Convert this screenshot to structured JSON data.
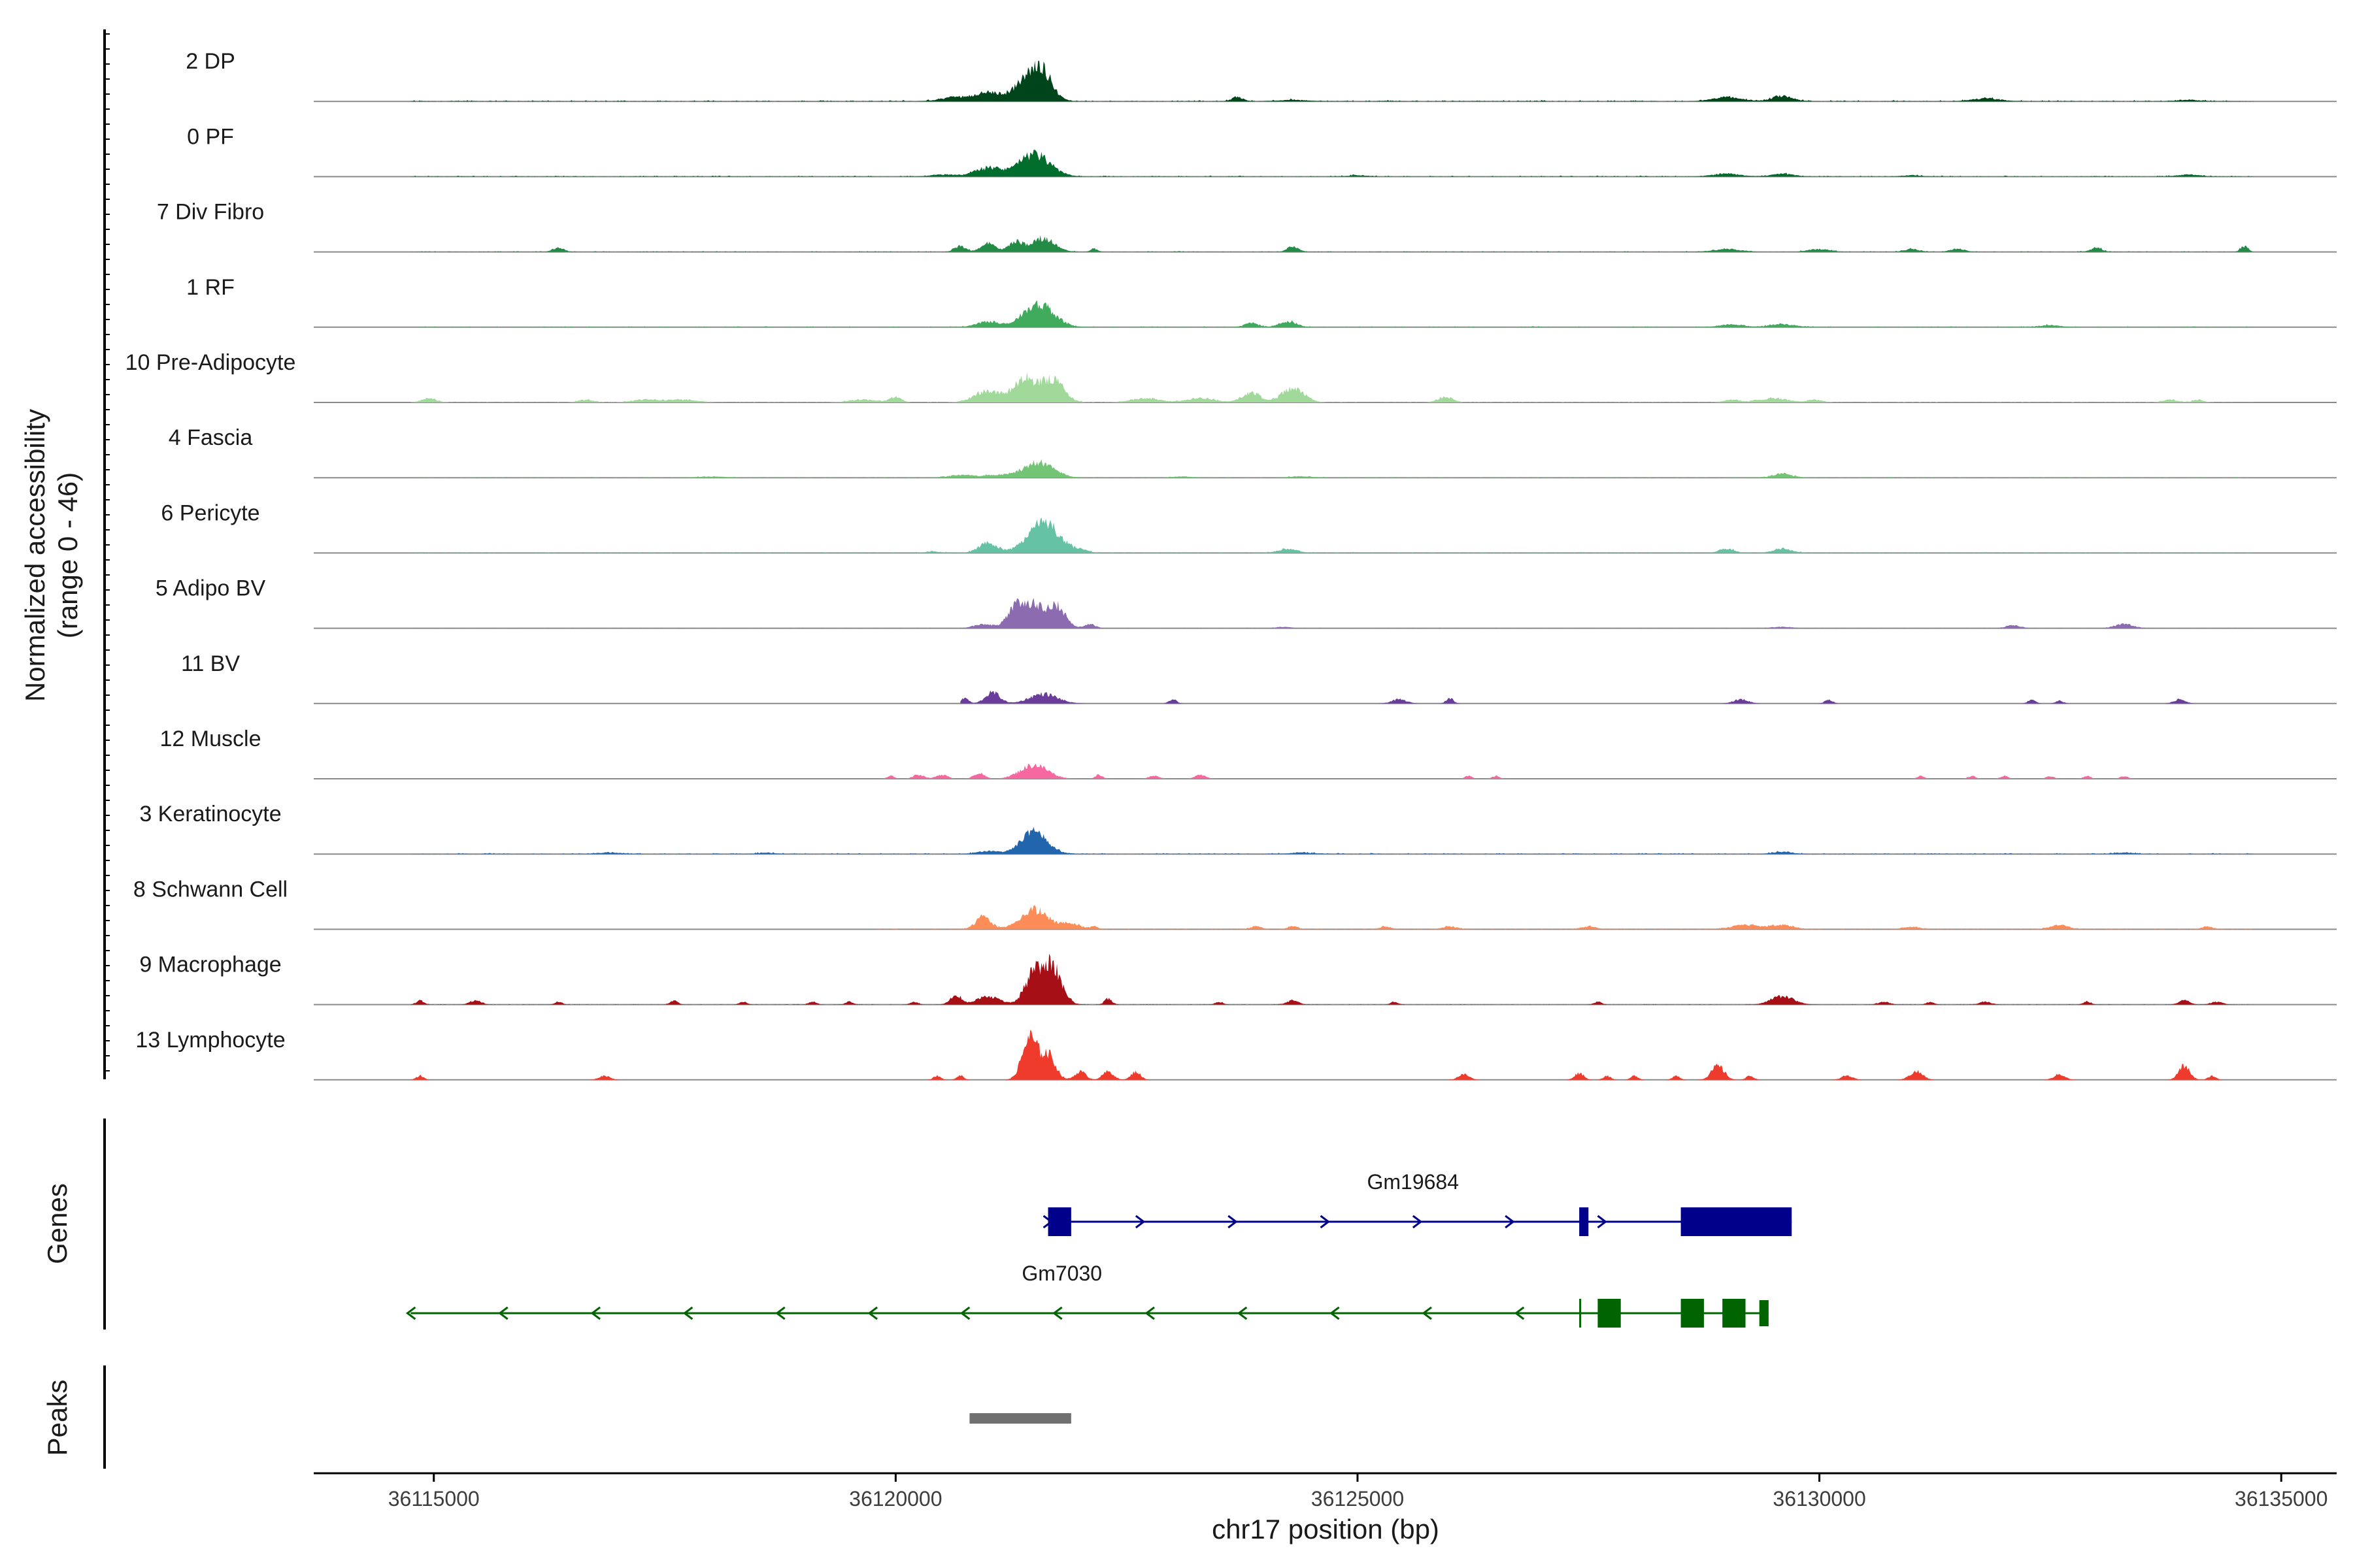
{
  "chart_data": {
    "type": "area",
    "title": "",
    "ylabel": "Normalized accessibility",
    "ylabel_range": "(range 0 - 46)",
    "yrange": [
      0,
      46
    ],
    "xlabel": "chr17 position (bp)",
    "xlim": [
      36113700,
      36135600
    ],
    "xticks": [
      36115000,
      36120000,
      36125000,
      36130000,
      36135000
    ],
    "xtick_labels": [
      "36115000",
      "36120000",
      "36125000",
      "36130000",
      "36135000"
    ],
    "tracks": [
      {
        "name": "2 DP",
        "color": "#00441b",
        "data_start": 36114750,
        "data_end": 36134700,
        "peaks": [
          [
            36121000,
            6,
            140
          ],
          [
            36121450,
            17,
            150
          ],
          [
            36121600,
            14,
            100
          ],
          [
            36120650,
            3,
            150
          ],
          [
            36123700,
            3,
            60
          ],
          [
            36129000,
            3,
            150
          ],
          [
            36129600,
            4,
            110
          ],
          [
            36124300,
            1,
            150
          ],
          [
            36131800,
            2,
            150
          ],
          [
            36134000,
            1,
            120
          ]
        ],
        "noise": 0.8
      },
      {
        "name": "0 PF",
        "color": "#006d2c",
        "data_start": 36114750,
        "data_end": 36134700,
        "peaks": [
          [
            36121000,
            6,
            150
          ],
          [
            36121500,
            16,
            170
          ],
          [
            36120500,
            1.5,
            120
          ],
          [
            36125000,
            1,
            100
          ],
          [
            36129000,
            2,
            150
          ],
          [
            36129600,
            2,
            120
          ],
          [
            36131000,
            1,
            100
          ],
          [
            36134000,
            1.5,
            120
          ]
        ],
        "noise": 0.7
      },
      {
        "name": "7 Div Fibro",
        "color": "#238b45",
        "data_start": 36114750,
        "data_end": 36134700,
        "peaks": [
          [
            36116350,
            3,
            60
          ],
          [
            36120700,
            4,
            60
          ],
          [
            36121000,
            6,
            80
          ],
          [
            36121300,
            7,
            80
          ],
          [
            36121600,
            10,
            120
          ],
          [
            36122150,
            2,
            40
          ],
          [
            36124300,
            4,
            60
          ],
          [
            36129000,
            2,
            150
          ],
          [
            36130000,
            2,
            120
          ],
          [
            36131000,
            2,
            80
          ],
          [
            36131500,
            2,
            80
          ],
          [
            36133000,
            3,
            60
          ],
          [
            36134600,
            4,
            40
          ]
        ],
        "noise": 0.6
      },
      {
        "name": "1 RF",
        "color": "#41ab5d",
        "data_start": 36114750,
        "data_end": 36134700,
        "peaks": [
          [
            36121000,
            4,
            120
          ],
          [
            36121550,
            17,
            160
          ],
          [
            36123850,
            3,
            70
          ],
          [
            36124250,
            4,
            90
          ],
          [
            36129050,
            2,
            120
          ],
          [
            36129600,
            2,
            140
          ],
          [
            36132500,
            1.5,
            100
          ]
        ],
        "noise": 0.6
      },
      {
        "name": "10 Pre-Adipocyte",
        "color": "#a1d99b",
        "data_start": 36114750,
        "data_end": 36134700,
        "peaks": [
          [
            36114950,
            3,
            80
          ],
          [
            36116650,
            2,
            80
          ],
          [
            36117300,
            2,
            150
          ],
          [
            36117700,
            2,
            150
          ],
          [
            36119650,
            2,
            150
          ],
          [
            36120000,
            4,
            60
          ],
          [
            36121000,
            8,
            150
          ],
          [
            36121400,
            17,
            120
          ],
          [
            36121700,
            16,
            120
          ],
          [
            36122700,
            3,
            150
          ],
          [
            36123300,
            3,
            150
          ],
          [
            36123850,
            7,
            100
          ],
          [
            36124300,
            10,
            120
          ],
          [
            36125950,
            4,
            80
          ],
          [
            36129050,
            2,
            80
          ],
          [
            36129500,
            3,
            150
          ],
          [
            36129950,
            2,
            80
          ],
          [
            36133800,
            2,
            80
          ],
          [
            36134100,
            2,
            60
          ]
        ],
        "noise": 0.5
      },
      {
        "name": "4 Fascia",
        "color": "#74c476",
        "data_start": 36114750,
        "data_end": 36134700,
        "peaks": [
          [
            36120700,
            2,
            120
          ],
          [
            36121100,
            2,
            150
          ],
          [
            36121550,
            11,
            160
          ],
          [
            36118000,
            0.8,
            150
          ],
          [
            36123100,
            0.8,
            100
          ],
          [
            36124400,
            1,
            120
          ],
          [
            36129600,
            3,
            100
          ]
        ],
        "noise": 0.5
      },
      {
        "name": "6 Pericyte",
        "color": "#66c2a4",
        "data_start": 36114750,
        "data_end": 36134700,
        "peaks": [
          [
            36121000,
            7,
            100
          ],
          [
            36121600,
            22,
            170
          ],
          [
            36124250,
            3,
            100
          ],
          [
            36129000,
            3,
            80
          ],
          [
            36129600,
            3,
            100
          ],
          [
            36122000,
            2,
            80
          ],
          [
            36120400,
            1,
            80
          ]
        ],
        "noise": 0.6
      },
      {
        "name": "5 Adipo BV",
        "color": "#8c6bb1",
        "data_start": 36114750,
        "data_end": 36134700,
        "peaks": [
          [
            36120950,
            3,
            100
          ],
          [
            36121300,
            15,
            90
          ],
          [
            36121500,
            16,
            110
          ],
          [
            36121750,
            15,
            90
          ],
          [
            36122100,
            3,
            60
          ],
          [
            36124200,
            1,
            80
          ],
          [
            36129600,
            1,
            100
          ],
          [
            36132100,
            2,
            80
          ],
          [
            36133300,
            3,
            100
          ]
        ],
        "noise": 0.3
      },
      {
        "name": "11 BV",
        "color": "#6a3d9a",
        "data_start": 36120700,
        "data_end": 36134100,
        "peaks": [
          [
            36120750,
            4,
            40
          ],
          [
            36121050,
            8,
            80
          ],
          [
            36121600,
            7,
            150
          ],
          [
            36123000,
            3,
            40
          ],
          [
            36125450,
            3,
            80
          ],
          [
            36126000,
            4,
            40
          ],
          [
            36129150,
            3,
            80
          ],
          [
            36130100,
            3,
            40
          ],
          [
            36132300,
            3,
            40
          ],
          [
            36132600,
            2,
            40
          ],
          [
            36133900,
            3,
            60
          ]
        ],
        "noise": 0.0
      },
      {
        "name": "12 Muscle",
        "color": "#f768a1",
        "data_start": 36114750,
        "data_end": 36134700,
        "peaks": [
          [
            36119950,
            2,
            40
          ],
          [
            36120250,
            3,
            60
          ],
          [
            36120500,
            3,
            60
          ],
          [
            36120900,
            4,
            60
          ],
          [
            36121500,
            10,
            150
          ],
          [
            36122200,
            3,
            40
          ],
          [
            36122800,
            2,
            60
          ],
          [
            36123300,
            3,
            60
          ],
          [
            36126200,
            2,
            40
          ],
          [
            36126500,
            2,
            40
          ],
          [
            36131100,
            2,
            40
          ],
          [
            36131650,
            2,
            40
          ],
          [
            36132000,
            2,
            40
          ],
          [
            36132500,
            2,
            40
          ],
          [
            36132900,
            2,
            40
          ],
          [
            36133300,
            2,
            40
          ]
        ],
        "noise": 0.0
      },
      {
        "name": "3 Keratinocyte",
        "color": "#2166ac",
        "data_start": 36114750,
        "data_end": 36134700,
        "peaks": [
          [
            36121500,
            16,
            140
          ],
          [
            36121000,
            2,
            120
          ],
          [
            36116900,
            1,
            120
          ],
          [
            36118600,
            1,
            80
          ],
          [
            36124400,
            1,
            120
          ],
          [
            36129600,
            1.5,
            100
          ],
          [
            36133300,
            1,
            100
          ]
        ],
        "noise": 0.7
      },
      {
        "name": "8 Schwann Cell",
        "color": "#fc8d59",
        "data_start": 36119800,
        "data_end": 36134700,
        "peaks": [
          [
            36120950,
            9,
            80
          ],
          [
            36121500,
            14,
            150
          ],
          [
            36121900,
            4,
            100
          ],
          [
            36122150,
            2,
            40
          ],
          [
            36123900,
            2,
            60
          ],
          [
            36124300,
            2,
            60
          ],
          [
            36125300,
            2,
            60
          ],
          [
            36126000,
            2,
            80
          ],
          [
            36127500,
            2,
            80
          ],
          [
            36129200,
            3,
            150
          ],
          [
            36129600,
            3,
            120
          ],
          [
            36131000,
            2,
            80
          ],
          [
            36132600,
            3,
            100
          ],
          [
            36134200,
            2,
            60
          ]
        ],
        "noise": 0.5
      },
      {
        "name": "9 Macrophage",
        "color": "#a50f15",
        "data_start": 36114750,
        "data_end": 36134700,
        "peaks": [
          [
            36114850,
            3,
            40
          ],
          [
            36115450,
            3,
            60
          ],
          [
            36116350,
            2,
            40
          ],
          [
            36117600,
            3,
            40
          ],
          [
            36118350,
            2,
            40
          ],
          [
            36119100,
            2,
            40
          ],
          [
            36119500,
            2,
            40
          ],
          [
            36120200,
            2,
            40
          ],
          [
            36120650,
            7,
            60
          ],
          [
            36121000,
            6,
            120
          ],
          [
            36121500,
            22,
            100
          ],
          [
            36121700,
            26,
            100
          ],
          [
            36122300,
            4,
            40
          ],
          [
            36123500,
            2,
            40
          ],
          [
            36124300,
            3,
            60
          ],
          [
            36125400,
            2,
            40
          ],
          [
            36127600,
            2,
            40
          ],
          [
            36129600,
            6,
            120
          ],
          [
            36130700,
            2,
            60
          ],
          [
            36131200,
            2,
            40
          ],
          [
            36131800,
            2,
            60
          ],
          [
            36132900,
            2,
            40
          ],
          [
            36133950,
            3,
            60
          ],
          [
            36134300,
            2,
            60
          ]
        ],
        "noise": 0.3
      },
      {
        "name": "13 Lymphocyte",
        "color": "#ef3b2c",
        "data_start": 36114750,
        "data_end": 36134700,
        "peaks": [
          [
            36114850,
            3,
            40
          ],
          [
            36116850,
            3,
            60
          ],
          [
            36120450,
            3,
            40
          ],
          [
            36120700,
            3,
            40
          ],
          [
            36121450,
            30,
            80
          ],
          [
            36121650,
            18,
            80
          ],
          [
            36122000,
            6,
            60
          ],
          [
            36122300,
            6,
            60
          ],
          [
            36122600,
            6,
            50
          ],
          [
            36126150,
            4,
            60
          ],
          [
            36127400,
            5,
            50
          ],
          [
            36127700,
            3,
            40
          ],
          [
            36128000,
            3,
            40
          ],
          [
            36128450,
            3,
            40
          ],
          [
            36128900,
            10,
            70
          ],
          [
            36129250,
            3,
            40
          ],
          [
            36130300,
            3,
            60
          ],
          [
            36131050,
            6,
            70
          ],
          [
            36132600,
            4,
            60
          ],
          [
            36133950,
            10,
            60
          ],
          [
            36134250,
            3,
            40
          ]
        ],
        "noise": 0.0
      }
    ],
    "genes_title": "Genes",
    "genes": [
      {
        "name": "Gm19684",
        "strand": "+",
        "color": "#00008b",
        "start": 36121650,
        "end": 36129700,
        "exons": [
          [
            36121650,
            36121900,
            "wide"
          ],
          [
            36127400,
            36127500,
            "wide"
          ],
          [
            36128500,
            36129700,
            "wide"
          ]
        ],
        "label_position": 36125600
      },
      {
        "name": "Gm7030",
        "strand": "-",
        "color": "#006400",
        "start": 36114750,
        "end": 36129450,
        "exons": [
          [
            36127400,
            36127420,
            "thin"
          ],
          [
            36127600,
            36127850,
            "wide"
          ],
          [
            36128500,
            36128750,
            "wide"
          ],
          [
            36128950,
            36129200,
            "wide"
          ],
          [
            36129350,
            36129450,
            "narrow"
          ]
        ],
        "label_position": 36121800
      }
    ],
    "peaks_title": "Peaks",
    "peak_regions": [
      [
        36120800,
        36121900
      ]
    ],
    "peak_color": "#707070"
  }
}
